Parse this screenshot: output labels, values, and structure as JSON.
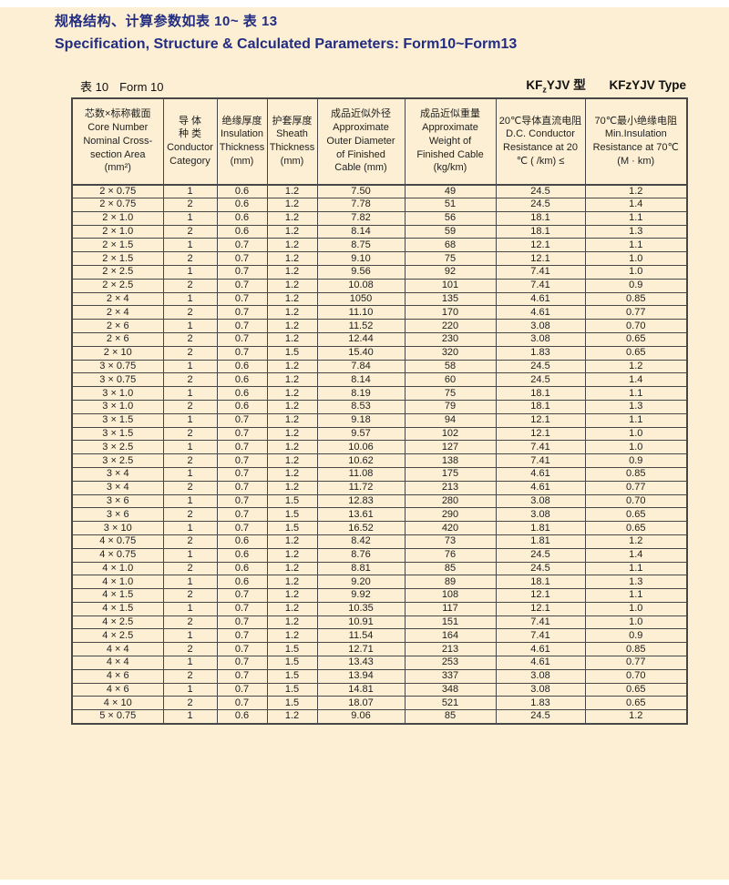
{
  "header": {
    "title_zh": "规格结构、计算参数如表 10~ 表 13",
    "title_en": "Specification, Structure & Calculated Parameters: Form10~Form13"
  },
  "table_meta": {
    "label_zh": "表 10",
    "label_en": "Form 10",
    "type_zh_prefix": "KF",
    "type_zh_sub": "z",
    "type_zh_suffix": "YJV 型",
    "type_en": "KFzYJV Type"
  },
  "table": {
    "columns": [
      "芯数×标称截面\nCore Number\nNominal Cross-\nsection Area\n(mm²)",
      "导 体\n种 类\nConductor\nCategory",
      "绝缘厚度\nInsulation\nThickness\n(mm)",
      "护套厚度\nSheath\nThickness\n(mm)",
      "成品近似外径\nApproximate\nOuter Diameter\nof Finished\nCable (mm)",
      "成品近似重量\nApproximate\nWeight of\nFinished Cable\n(kg/km)",
      "20℃导体直流电阻\nD.C. Conductor\nResistance at 20\n℃ (  /km) ≤",
      "70℃最小绝缘电阻\nMin.Insulation\nResistance at 70℃\n(M   · km)"
    ],
    "rows": [
      [
        "2 × 0.75",
        "1",
        "0.6",
        "1.2",
        "7.50",
        "49",
        "24.5",
        "1.2"
      ],
      [
        "2 × 0.75",
        "2",
        "0.6",
        "1.2",
        "7.78",
        "51",
        "24.5",
        "1.4"
      ],
      [
        "2 × 1.0",
        "1",
        "0.6",
        "1.2",
        "7.82",
        "56",
        "18.1",
        "1.1"
      ],
      [
        "2 × 1.0",
        "2",
        "0.6",
        "1.2",
        "8.14",
        "59",
        "18.1",
        "1.3"
      ],
      [
        "2 × 1.5",
        "1",
        "0.7",
        "1.2",
        "8.75",
        "68",
        "12.1",
        "1.1"
      ],
      [
        "2 × 1.5",
        "2",
        "0.7",
        "1.2",
        "9.10",
        "75",
        "12.1",
        "1.0"
      ],
      [
        "2 × 2.5",
        "1",
        "0.7",
        "1.2",
        "9.56",
        "92",
        "7.41",
        "1.0"
      ],
      [
        "2 × 2.5",
        "2",
        "0.7",
        "1.2",
        "10.08",
        "101",
        "7.41",
        "0.9"
      ],
      [
        "2 × 4",
        "1",
        "0.7",
        "1.2",
        "1050",
        "135",
        "4.61",
        "0.85"
      ],
      [
        "2 × 4",
        "2",
        "0.7",
        "1.2",
        "11.10",
        "170",
        "4.61",
        "0.77"
      ],
      [
        "2 × 6",
        "1",
        "0.7",
        "1.2",
        "11.52",
        "220",
        "3.08",
        "0.70"
      ],
      [
        "2 × 6",
        "2",
        "0.7",
        "1.2",
        "12.44",
        "230",
        "3.08",
        "0.65"
      ],
      [
        "2 × 10",
        "2",
        "0.7",
        "1.5",
        "15.40",
        "320",
        "1.83",
        "0.65"
      ],
      [
        "3 × 0.75",
        "1",
        "0.6",
        "1.2",
        "7.84",
        "58",
        "24.5",
        "1.2"
      ],
      [
        "3 × 0.75",
        "2",
        "0.6",
        "1.2",
        "8.14",
        "60",
        "24.5",
        "1.4"
      ],
      [
        "3 × 1.0",
        "1",
        "0.6",
        "1.2",
        "8.19",
        "75",
        "18.1",
        "1.1"
      ],
      [
        "3 × 1.0",
        "2",
        "0.6",
        "1.2",
        "8.53",
        "79",
        "18.1",
        "1.3"
      ],
      [
        "3 × 1.5",
        "1",
        "0.7",
        "1.2",
        "9.18",
        "94",
        "12.1",
        "1.1"
      ],
      [
        "3 × 1.5",
        "2",
        "0.7",
        "1.2",
        "9.57",
        "102",
        "12.1",
        "1.0"
      ],
      [
        "3 × 2.5",
        "1",
        "0.7",
        "1.2",
        "10.06",
        "127",
        "7.41",
        "1.0"
      ],
      [
        "3 × 2.5",
        "2",
        "0.7",
        "1.2",
        "10.62",
        "138",
        "7.41",
        "0.9"
      ],
      [
        "3 × 4",
        "1",
        "0.7",
        "1.2",
        "11.08",
        "175",
        "4.61",
        "0.85"
      ],
      [
        "3 × 4",
        "2",
        "0.7",
        "1.2",
        "11.72",
        "213",
        "4.61",
        "0.77"
      ],
      [
        "3 × 6",
        "1",
        "0.7",
        "1.5",
        "12.83",
        "280",
        "3.08",
        "0.70"
      ],
      [
        "3 × 6",
        "2",
        "0.7",
        "1.5",
        "13.61",
        "290",
        "3.08",
        "0.65"
      ],
      [
        "3 × 10",
        "1",
        "0.7",
        "1.5",
        "16.52",
        "420",
        "1.81",
        "0.65"
      ],
      [
        "4 × 0.75",
        "2",
        "0.6",
        "1.2",
        "8.42",
        "73",
        "1.81",
        "1.2"
      ],
      [
        "4 × 0.75",
        "1",
        "0.6",
        "1.2",
        "8.76",
        "76",
        "24.5",
        "1.4"
      ],
      [
        "4 × 1.0",
        "2",
        "0.6",
        "1.2",
        "8.81",
        "85",
        "24.5",
        "1.1"
      ],
      [
        "4 × 1.0",
        "1",
        "0.6",
        "1.2",
        "9.20",
        "89",
        "18.1",
        "1.3"
      ],
      [
        "4 × 1.5",
        "2",
        "0.7",
        "1.2",
        "9.92",
        "108",
        "12.1",
        "1.1"
      ],
      [
        "4 × 1.5",
        "1",
        "0.7",
        "1.2",
        "10.35",
        "117",
        "12.1",
        "1.0"
      ],
      [
        "4 × 2.5",
        "2",
        "0.7",
        "1.2",
        "10.91",
        "151",
        "7.41",
        "1.0"
      ],
      [
        "4 × 2.5",
        "1",
        "0.7",
        "1.2",
        "11.54",
        "164",
        "7.41",
        "0.9"
      ],
      [
        "4 × 4",
        "2",
        "0.7",
        "1.5",
        "12.71",
        "213",
        "4.61",
        "0.85"
      ],
      [
        "4 × 4",
        "1",
        "0.7",
        "1.5",
        "13.43",
        "253",
        "4.61",
        "0.77"
      ],
      [
        "4 × 6",
        "2",
        "0.7",
        "1.5",
        "13.94",
        "337",
        "3.08",
        "0.70"
      ],
      [
        "4 × 6",
        "1",
        "0.7",
        "1.5",
        "14.81",
        "348",
        "3.08",
        "0.65"
      ],
      [
        "4 × 10",
        "2",
        "0.7",
        "1.5",
        "18.07",
        "521",
        "1.83",
        "0.65"
      ],
      [
        "5 × 0.75",
        "1",
        "0.6",
        "1.2",
        "9.06",
        "85",
        "24.5",
        "1.2"
      ]
    ]
  },
  "colors": {
    "page_background": "#FCEFD3",
    "title_navy": "#222D82",
    "table_line": "#474747",
    "body_text": "#1F1F1F"
  }
}
